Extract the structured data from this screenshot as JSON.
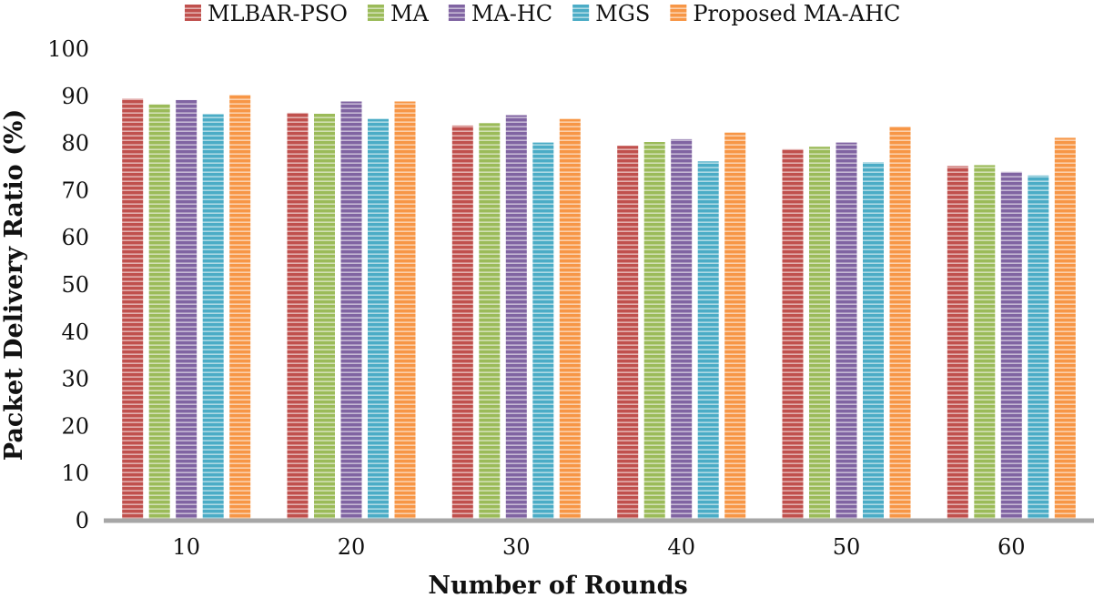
{
  "chart_data": {
    "type": "bar",
    "title": "",
    "xlabel": "Number of Rounds",
    "ylabel": "Packet Delivery Ratio (%)",
    "ylim": [
      0,
      100
    ],
    "ytick_step": 10,
    "grid": false,
    "legend_position": "top",
    "categories": [
      "10",
      "20",
      "30",
      "40",
      "50",
      "60"
    ],
    "series": [
      {
        "name": "MLBAR-PSO",
        "color": "#c0504d",
        "values": [
          89.5,
          86.5,
          83.8,
          79.5,
          78.8,
          75.2
        ]
      },
      {
        "name": "MA",
        "color": "#9bbb59",
        "values": [
          88.3,
          86.3,
          84.3,
          80.3,
          79.3,
          75.4
        ]
      },
      {
        "name": "MA-HC",
        "color": "#8064a2",
        "values": [
          89.2,
          88.9,
          86.0,
          80.9,
          80.2,
          74.0
        ]
      },
      {
        "name": "MGS",
        "color": "#4bacc6",
        "values": [
          86.2,
          85.2,
          80.2,
          76.2,
          76.0,
          73.2
        ]
      },
      {
        "name": "Proposed MA-AHC",
        "color": "#f79646",
        "values": [
          90.3,
          88.9,
          85.2,
          82.3,
          83.6,
          81.2
        ]
      }
    ]
  }
}
